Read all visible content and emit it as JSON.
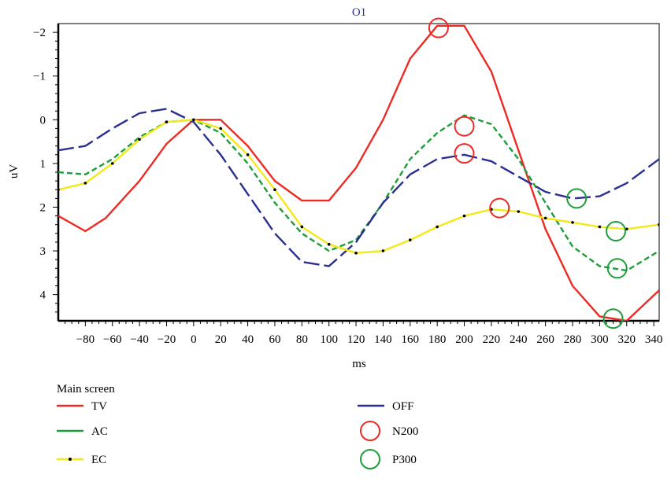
{
  "chart_data": {
    "type": "line",
    "title": "O1",
    "xlabel": "ms",
    "ylabel": "uV",
    "xlim": [
      -100,
      344
    ],
    "ylim": [
      4.6,
      -2.2
    ],
    "y_inverted": true,
    "xticks": [
      -80,
      -60,
      -40,
      -20,
      0,
      20,
      40,
      60,
      80,
      100,
      120,
      140,
      160,
      180,
      200,
      220,
      240,
      260,
      280,
      300,
      320,
      340
    ],
    "yticks": [
      -2,
      -1,
      0,
      1,
      2,
      3,
      4
    ],
    "ytick_labels": [
      "−2",
      "−1",
      "0",
      "1",
      "2",
      "3",
      "4"
    ],
    "xtick_labels": [
      "−80",
      "−60",
      "−40",
      "−20",
      "0",
      "20",
      "40",
      "60",
      "80",
      "100",
      "120",
      "140",
      "160",
      "180",
      "200",
      "220",
      "240",
      "260",
      "280",
      "300",
      "320",
      "340"
    ],
    "grid": false,
    "legend_title": "Main screen",
    "legend_position": "bottom",
    "series": [
      {
        "name": "TV",
        "color": "#ee2a24",
        "style": "solid",
        "x": [
          -100,
          -80,
          -65,
          -40,
          -20,
          0,
          20,
          40,
          60,
          80,
          100,
          120,
          140,
          160,
          180,
          200,
          220,
          240,
          260,
          280,
          300,
          320,
          344
        ],
        "y": [
          2.2,
          2.55,
          2.25,
          1.4,
          0.55,
          0.0,
          0.0,
          0.6,
          1.4,
          1.85,
          1.85,
          1.1,
          0.0,
          -1.4,
          -2.15,
          -2.15,
          -1.1,
          0.7,
          2.5,
          3.8,
          4.5,
          4.6,
          3.9
        ]
      },
      {
        "name": "AC",
        "color": "#1e9e3a",
        "style": "dashed",
        "x": [
          -100,
          -80,
          -60,
          -40,
          -20,
          0,
          20,
          40,
          60,
          80,
          100,
          120,
          140,
          160,
          180,
          200,
          220,
          240,
          260,
          280,
          300,
          320,
          344
        ],
        "y": [
          1.2,
          1.25,
          0.9,
          0.4,
          0.05,
          0.0,
          0.3,
          1.0,
          1.9,
          2.6,
          3.0,
          2.75,
          1.9,
          0.9,
          0.3,
          -0.1,
          0.1,
          0.9,
          1.9,
          2.9,
          3.35,
          3.45,
          3.0
        ]
      },
      {
        "name": "OFF",
        "color": "#2b2f8f",
        "style": "longdash",
        "x": [
          -100,
          -80,
          -60,
          -40,
          -20,
          0,
          20,
          40,
          60,
          80,
          100,
          120,
          140,
          160,
          180,
          200,
          220,
          240,
          260,
          280,
          300,
          320,
          344
        ],
        "y": [
          0.7,
          0.6,
          0.2,
          -0.15,
          -0.25,
          0.05,
          0.8,
          1.7,
          2.6,
          3.25,
          3.35,
          2.8,
          1.9,
          1.25,
          0.9,
          0.8,
          0.95,
          1.3,
          1.65,
          1.8,
          1.75,
          1.45,
          0.9
        ]
      },
      {
        "name": "EC",
        "color": "#f2e81a",
        "style": "solid-dots",
        "x": [
          -100,
          -80,
          -60,
          -40,
          -20,
          0,
          20,
          40,
          60,
          80,
          100,
          120,
          140,
          160,
          180,
          200,
          220,
          240,
          260,
          280,
          300,
          320,
          344
        ],
        "y": [
          1.6,
          1.45,
          1.0,
          0.45,
          0.05,
          0.0,
          0.2,
          0.8,
          1.6,
          2.45,
          2.85,
          3.05,
          3.0,
          2.75,
          2.45,
          2.2,
          2.05,
          2.1,
          2.25,
          2.35,
          2.45,
          2.5,
          2.4
        ]
      }
    ],
    "markers": [
      {
        "name": "N200",
        "color": "#ee2a24",
        "points": [
          [
            181,
            -2.1
          ],
          [
            200,
            0.15
          ],
          [
            200,
            0.77
          ],
          [
            226,
            2.02
          ]
        ]
      },
      {
        "name": "P300",
        "color": "#1e9e3a",
        "points": [
          [
            283,
            1.8
          ],
          [
            312,
            2.55
          ],
          [
            313,
            3.4
          ],
          [
            310,
            4.55
          ]
        ]
      }
    ]
  }
}
